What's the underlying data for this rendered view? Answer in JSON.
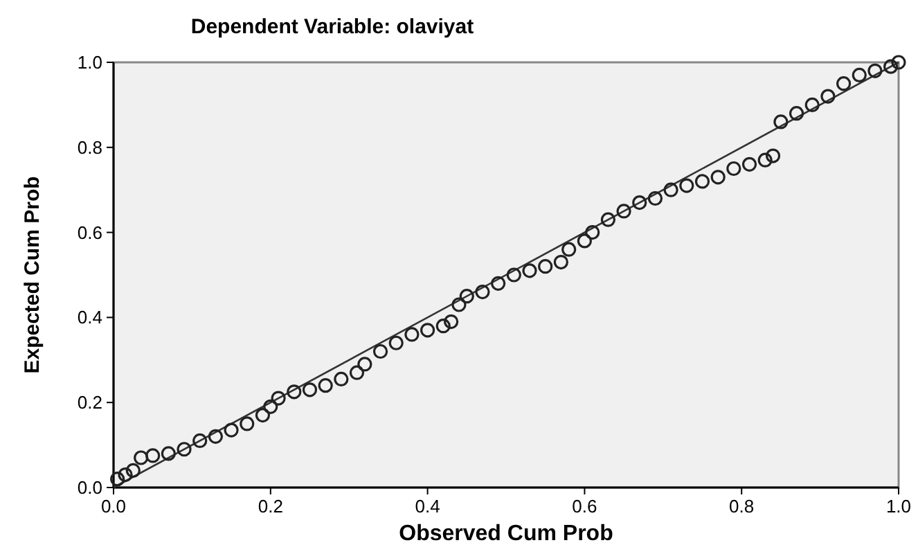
{
  "chart_data": {
    "type": "scatter",
    "title": "Dependent Variable: olaviyat",
    "xlabel": "Observed Cum Prob",
    "ylabel": "Expected Cum Prob",
    "xlim": [
      0,
      1
    ],
    "ylim": [
      0,
      1
    ],
    "xticks": [
      {
        "value": 0,
        "label": "0.0"
      },
      {
        "value": 0.2,
        "label": "0.2"
      },
      {
        "value": 0.4,
        "label": "0.4"
      },
      {
        "value": 0.6,
        "label": "0.6"
      },
      {
        "value": 0.8,
        "label": "0.8"
      },
      {
        "value": 1,
        "label": "1.0"
      }
    ],
    "yticks": [
      {
        "value": 0,
        "label": "0.0"
      },
      {
        "value": 0.2,
        "label": "0.2"
      },
      {
        "value": 0.4,
        "label": "0.4"
      },
      {
        "value": 0.6,
        "label": "0.6"
      },
      {
        "value": 0.8,
        "label": "0.8"
      },
      {
        "value": 1,
        "label": "1.0"
      }
    ],
    "grid": false,
    "marker": "circle",
    "series": [
      {
        "type": "line",
        "color": "#333333",
        "x": [
          0,
          1
        ],
        "values": [
          0,
          1
        ],
        "line_style": "solid",
        "marker": "none"
      },
      {
        "color": "#222222",
        "x": [
          0.005,
          0.015,
          0.025,
          0.035,
          0.05,
          0.07,
          0.09,
          0.11,
          0.13,
          0.15,
          0.17,
          0.19,
          0.2,
          0.21,
          0.23,
          0.25,
          0.27,
          0.29,
          0.31,
          0.32,
          0.34,
          0.36,
          0.38,
          0.4,
          0.42,
          0.43,
          0.44,
          0.45,
          0.47,
          0.49,
          0.51,
          0.53,
          0.55,
          0.57,
          0.58,
          0.6,
          0.61,
          0.63,
          0.65,
          0.67,
          0.69,
          0.71,
          0.73,
          0.75,
          0.77,
          0.79,
          0.81,
          0.83,
          0.84,
          0.85,
          0.87,
          0.89,
          0.91,
          0.93,
          0.95,
          0.97,
          0.99,
          1.0
        ],
        "values": [
          0.02,
          0.03,
          0.04,
          0.07,
          0.075,
          0.08,
          0.09,
          0.11,
          0.12,
          0.135,
          0.15,
          0.17,
          0.19,
          0.21,
          0.225,
          0.23,
          0.24,
          0.255,
          0.27,
          0.29,
          0.32,
          0.34,
          0.36,
          0.37,
          0.38,
          0.39,
          0.43,
          0.45,
          0.46,
          0.48,
          0.5,
          0.51,
          0.52,
          0.53,
          0.56,
          0.58,
          0.6,
          0.63,
          0.65,
          0.67,
          0.68,
          0.7,
          0.71,
          0.72,
          0.73,
          0.75,
          0.76,
          0.77,
          0.78,
          0.86,
          0.88,
          0.9,
          0.92,
          0.95,
          0.97,
          0.98,
          0.99,
          1.0
        ]
      }
    ]
  }
}
